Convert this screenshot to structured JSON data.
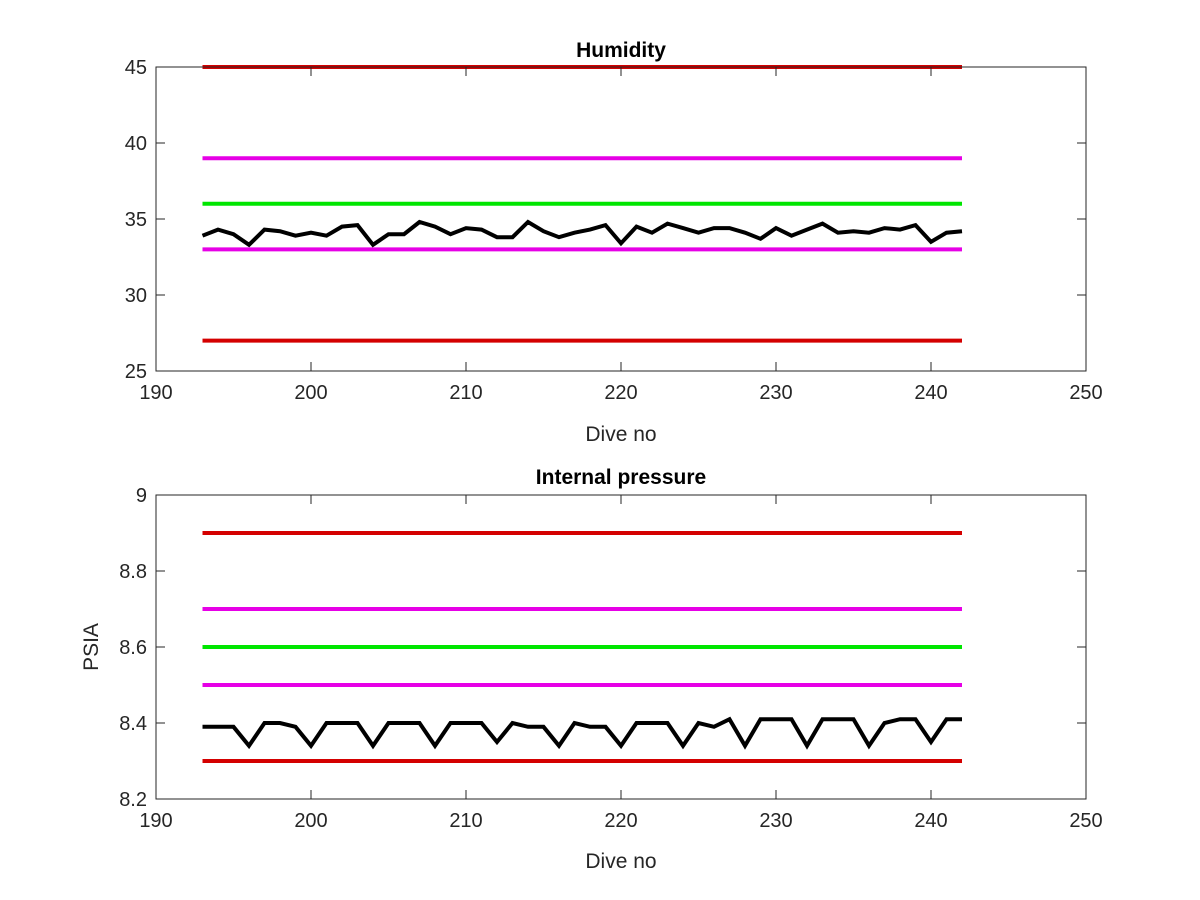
{
  "chart_data": [
    {
      "type": "line",
      "title": "Humidity",
      "xlabel": "Dive no",
      "ylabel": "",
      "xlim": [
        190,
        250
      ],
      "ylim": [
        25,
        45
      ],
      "xticks": [
        190,
        200,
        210,
        220,
        230,
        240,
        250
      ],
      "yticks": [
        25,
        30,
        35,
        40,
        45
      ],
      "grid": false,
      "limit_lines": [
        {
          "y": 45,
          "color": "#d40000"
        },
        {
          "y": 39,
          "color": "#e600e6"
        },
        {
          "y": 36,
          "color": "#00e600"
        },
        {
          "y": 33,
          "color": "#e600e6"
        },
        {
          "y": 27,
          "color": "#d40000"
        }
      ],
      "limit_x_range": [
        193,
        242
      ],
      "series": [
        {
          "color": "#000000",
          "x": [
            193,
            194,
            195,
            196,
            197,
            198,
            199,
            200,
            201,
            202,
            203,
            204,
            205,
            206,
            207,
            208,
            209,
            210,
            211,
            212,
            213,
            214,
            215,
            216,
            217,
            218,
            219,
            220,
            221,
            222,
            223,
            224,
            225,
            226,
            227,
            228,
            229,
            230,
            231,
            232,
            233,
            234,
            235,
            236,
            237,
            238,
            239,
            240,
            241,
            242
          ],
          "values": [
            33.9,
            34.3,
            34.0,
            33.3,
            34.3,
            34.2,
            33.9,
            34.1,
            33.9,
            34.5,
            34.6,
            33.3,
            34.0,
            34.0,
            34.8,
            34.5,
            34.0,
            34.4,
            34.3,
            33.8,
            33.8,
            34.8,
            34.2,
            33.8,
            34.1,
            34.3,
            34.6,
            33.4,
            34.5,
            34.1,
            34.7,
            34.4,
            34.1,
            34.4,
            34.4,
            34.1,
            33.7,
            34.4,
            33.9,
            34.3,
            34.7,
            34.1,
            34.2,
            34.1,
            34.4,
            34.3,
            34.6,
            33.5,
            34.1,
            34.2
          ]
        }
      ]
    },
    {
      "type": "line",
      "title": "Internal pressure",
      "xlabel": "Dive no",
      "ylabel": "PSIA",
      "xlim": [
        190,
        250
      ],
      "ylim": [
        8.2,
        9
      ],
      "xticks": [
        190,
        200,
        210,
        220,
        230,
        240,
        250
      ],
      "yticks": [
        8.2,
        8.4,
        8.6,
        8.8,
        9
      ],
      "ytick_labels": [
        "8.2",
        "8.4",
        "8.6",
        "8.8",
        "9"
      ],
      "grid": false,
      "limit_lines": [
        {
          "y": 8.9,
          "color": "#d40000"
        },
        {
          "y": 8.7,
          "color": "#e600e6"
        },
        {
          "y": 8.6,
          "color": "#00e600"
        },
        {
          "y": 8.5,
          "color": "#e600e6"
        },
        {
          "y": 8.3,
          "color": "#d40000"
        }
      ],
      "limit_x_range": [
        193,
        242
      ],
      "series": [
        {
          "color": "#000000",
          "x": [
            193,
            194,
            195,
            196,
            197,
            198,
            199,
            200,
            201,
            202,
            203,
            204,
            205,
            206,
            207,
            208,
            209,
            210,
            211,
            212,
            213,
            214,
            215,
            216,
            217,
            218,
            219,
            220,
            221,
            222,
            223,
            224,
            225,
            226,
            227,
            228,
            229,
            230,
            231,
            232,
            233,
            234,
            235,
            236,
            237,
            238,
            239,
            240,
            241,
            242
          ],
          "values": [
            8.39,
            8.39,
            8.39,
            8.34,
            8.4,
            8.4,
            8.39,
            8.34,
            8.4,
            8.4,
            8.4,
            8.34,
            8.4,
            8.4,
            8.4,
            8.34,
            8.4,
            8.4,
            8.4,
            8.35,
            8.4,
            8.39,
            8.39,
            8.34,
            8.4,
            8.39,
            8.39,
            8.34,
            8.4,
            8.4,
            8.4,
            8.34,
            8.4,
            8.39,
            8.41,
            8.34,
            8.41,
            8.41,
            8.41,
            8.34,
            8.41,
            8.41,
            8.41,
            8.34,
            8.4,
            8.41,
            8.41,
            8.35,
            8.41,
            8.41
          ]
        }
      ]
    }
  ]
}
